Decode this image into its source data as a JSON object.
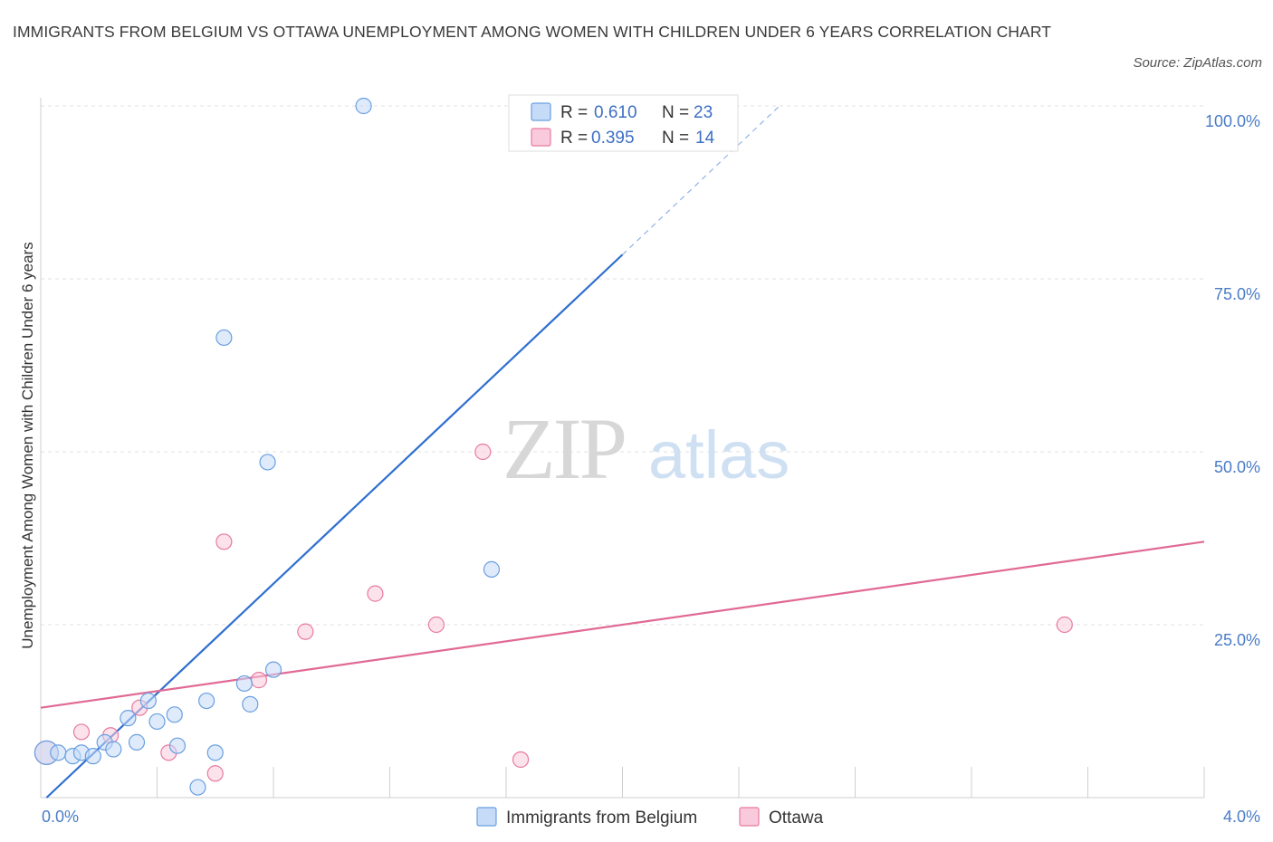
{
  "title": "IMMIGRANTS FROM BELGIUM VS OTTAWA UNEMPLOYMENT AMONG WOMEN WITH CHILDREN UNDER 6 YEARS CORRELATION CHART",
  "source": "Source: ZipAtlas.com",
  "watermark": {
    "zip": "ZIP",
    "atlas": "atlas"
  },
  "colors": {
    "belgium": "#6a9fe0",
    "belgium_fill": "#c5dbf7",
    "ottawa": "#e87aa0",
    "ottawa_fill": "#f9cadb",
    "tick": "#4a7cc7"
  },
  "legend": {
    "rows": [
      {
        "r_label": "R =",
        "r_value": "0.610",
        "n_label": "N =",
        "n_value": "23"
      },
      {
        "r_label": "R =",
        "r_value": "0.395",
        "n_label": "N =",
        "n_value": "14"
      }
    ]
  },
  "bottom_legend": [
    "Immigrants from Belgium",
    "Ottawa"
  ],
  "chart_data": {
    "type": "scatter",
    "title": "IMMIGRANTS FROM BELGIUM VS OTTAWA UNEMPLOYMENT AMONG WOMEN WITH CHILDREN UNDER 6 YEARS CORRELATION CHART",
    "xlabel": "",
    "ylabel": "Unemployment Among Women with Children Under 6 years",
    "xlim": [
      0,
      4.0
    ],
    "ylim": [
      0,
      100
    ],
    "x_tick_labels": [
      "0.0%",
      "4.0%"
    ],
    "y_ticks": [
      25,
      50,
      75,
      100
    ],
    "y_tick_labels": [
      "25.0%",
      "50.0%",
      "75.0%",
      "100.0%"
    ],
    "grid": true,
    "legend_position": "top-center",
    "series": [
      {
        "name": "Immigrants from Belgium",
        "R": 0.61,
        "N": 23,
        "points": [
          [
            0.02,
            6.5
          ],
          [
            0.06,
            6.5
          ],
          [
            0.11,
            6.0
          ],
          [
            0.14,
            6.5
          ],
          [
            0.18,
            6.0
          ],
          [
            0.22,
            8.0
          ],
          [
            0.25,
            7.0
          ],
          [
            0.3,
            11.5
          ],
          [
            0.33,
            8.0
          ],
          [
            0.37,
            14.0
          ],
          [
            0.4,
            11.0
          ],
          [
            0.46,
            12.0
          ],
          [
            0.47,
            7.5
          ],
          [
            0.54,
            1.5
          ],
          [
            0.57,
            14.0
          ],
          [
            0.6,
            6.5
          ],
          [
            0.63,
            66.5
          ],
          [
            0.7,
            16.5
          ],
          [
            0.72,
            13.5
          ],
          [
            0.78,
            48.5
          ],
          [
            0.8,
            18.5
          ],
          [
            1.11,
            100.0
          ],
          [
            1.55,
            33.0
          ]
        ],
        "trend": {
          "x0": 0.02,
          "y0": 0.0,
          "x1": 2.0,
          "y1": 78.5,
          "dashed_to": [
            2.54,
            100.0
          ]
        }
      },
      {
        "name": "Ottawa",
        "R": 0.395,
        "N": 14,
        "points": [
          [
            0.02,
            6.5
          ],
          [
            0.14,
            9.5
          ],
          [
            0.24,
            9.0
          ],
          [
            0.34,
            13.0
          ],
          [
            0.44,
            6.5
          ],
          [
            0.6,
            3.5
          ],
          [
            0.63,
            37.0
          ],
          [
            0.75,
            17.0
          ],
          [
            0.91,
            24.0
          ],
          [
            1.15,
            29.5
          ],
          [
            1.36,
            25.0
          ],
          [
            1.52,
            50.0
          ],
          [
            1.65,
            5.5
          ],
          [
            3.52,
            25.0
          ]
        ],
        "trend": {
          "x0": 0.0,
          "y0": 13.0,
          "x1": 4.0,
          "y1": 37.0
        }
      }
    ]
  }
}
